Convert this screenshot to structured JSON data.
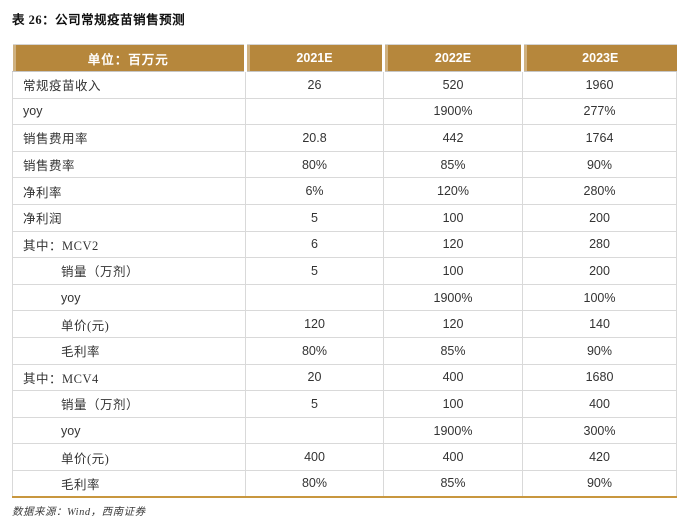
{
  "title": "表 26：公司常规疫苗销售预测",
  "table": {
    "unit_header": "单位：百万元",
    "columns": [
      "2021E",
      "2022E",
      "2023E"
    ],
    "rows": [
      {
        "label": "常规疫苗收入",
        "indent": 0,
        "values": [
          "26",
          "520",
          "1960"
        ]
      },
      {
        "label": "yoy",
        "indent": 0,
        "values": [
          "",
          "1900%",
          "277%"
        ]
      },
      {
        "label": "销售费用率",
        "indent": 0,
        "values": [
          "20.8",
          "442",
          "1764"
        ]
      },
      {
        "label": "销售费率",
        "indent": 0,
        "values": [
          "80%",
          "85%",
          "90%"
        ]
      },
      {
        "label": "净利率",
        "indent": 0,
        "values": [
          "6%",
          "120%",
          "280%"
        ]
      },
      {
        "label": "净利润",
        "indent": 0,
        "values": [
          "5",
          "100",
          "200"
        ]
      },
      {
        "label": "其中：MCV2",
        "indent": 0,
        "values": [
          "6",
          "120",
          "280"
        ]
      },
      {
        "label": "销量（万剂）",
        "indent": 1,
        "values": [
          "5",
          "100",
          "200"
        ]
      },
      {
        "label": "yoy",
        "indent": 1,
        "values": [
          "",
          "1900%",
          "100%"
        ]
      },
      {
        "label": "单价(元)",
        "indent": 1,
        "values": [
          "120",
          "120",
          "140"
        ]
      },
      {
        "label": "毛利率",
        "indent": 1,
        "values": [
          "80%",
          "85%",
          "90%"
        ]
      },
      {
        "label": "其中：MCV4",
        "indent": 0,
        "values": [
          "20",
          "400",
          "1680"
        ]
      },
      {
        "label": "销量（万剂）",
        "indent": 1,
        "values": [
          "5",
          "100",
          "400"
        ]
      },
      {
        "label": "yoy",
        "indent": 1,
        "values": [
          "",
          "1900%",
          "300%"
        ]
      },
      {
        "label": "单价(元)",
        "indent": 1,
        "values": [
          "400",
          "400",
          "420"
        ]
      },
      {
        "label": "毛利率",
        "indent": 1,
        "values": [
          "80%",
          "85%",
          "90%"
        ]
      }
    ]
  },
  "footer": {
    "source": "数据来源：Wind，西南证券"
  },
  "colors": {
    "header_bg": "#B6873C",
    "header_text": "#FFFFFF",
    "border": "#D9D9D9",
    "accent": "#C8973F",
    "text": "#333333",
    "title_text": "#111111"
  }
}
